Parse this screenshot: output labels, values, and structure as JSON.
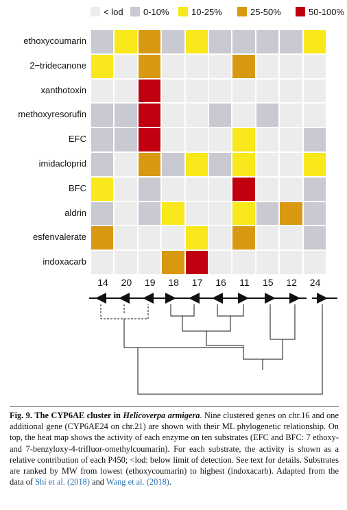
{
  "legend": [
    {
      "label": "< lod",
      "color": "#ececec"
    },
    {
      "label": "0-10%",
      "color": "#c9c9d1"
    },
    {
      "label": "10-25%",
      "color": "#f8e81c"
    },
    {
      "label": "25-50%",
      "color": "#d89810"
    },
    {
      "label": "50-100%",
      "color": "#c00010"
    }
  ],
  "chart_data": {
    "type": "heatmap",
    "rows": [
      "ethoxycoumarin",
      "2−tridecanone",
      "xanthotoxin",
      "methoxyresorufin",
      "EFC",
      "imidacloprid",
      "BFC",
      "aldrin",
      "esfenvalerate",
      "indoxacarb"
    ],
    "columns": [
      "14",
      "20",
      "19",
      "18",
      "17",
      "16",
      "11",
      "15",
      "12",
      "24"
    ],
    "categories": [
      "< lod",
      "0-10%",
      "10-25%",
      "25-50%",
      "50-100%"
    ],
    "values": [
      [
        1,
        2,
        3,
        1,
        2,
        1,
        1,
        1,
        1,
        2
      ],
      [
        2,
        0,
        3,
        0,
        0,
        0,
        3,
        0,
        0,
        0
      ],
      [
        0,
        0,
        4,
        0,
        0,
        0,
        0,
        0,
        0,
        0
      ],
      [
        1,
        1,
        4,
        0,
        0,
        1,
        0,
        1,
        0,
        0
      ],
      [
        1,
        1,
        4,
        0,
        0,
        0,
        2,
        0,
        0,
        1
      ],
      [
        1,
        0,
        3,
        1,
        2,
        1,
        2,
        0,
        0,
        2
      ],
      [
        2,
        0,
        1,
        0,
        0,
        0,
        4,
        0,
        0,
        1
      ],
      [
        1,
        0,
        1,
        2,
        0,
        0,
        2,
        1,
        3,
        1
      ],
      [
        3,
        0,
        0,
        0,
        2,
        0,
        3,
        0,
        0,
        1
      ],
      [
        0,
        0,
        0,
        3,
        4,
        0,
        0,
        0,
        0,
        0
      ]
    ]
  },
  "caption": {
    "fig": "Fig. 9.",
    "title_a": "The CYP6AE cluster in",
    "title_species": "Helicoverpa armigera",
    "body": ". Nine clustered genes on chr.16 and one additional gene (CYP6AE24 on chr.21) are shown with their ML phylogenetic relationship. On top, the heat map shows the activity of each enzyme on ten substrates (EFC and BFC: 7 ethoxy- and 7-benzyloxy-4-trifluor-omethylcoumarin). For each substrate, the activity is shown as a relative contribution of each P450; <lod: below limit of detection. See text for details. Substrates are ranked by MW from lowest (ethoxycoumarin) to highest (indoxacarb). Adapted from the data of ",
    "ref1": "Shi et al. (2018)",
    "and": " and ",
    "ref2": "Wang et al. (2018)",
    "end": "."
  }
}
